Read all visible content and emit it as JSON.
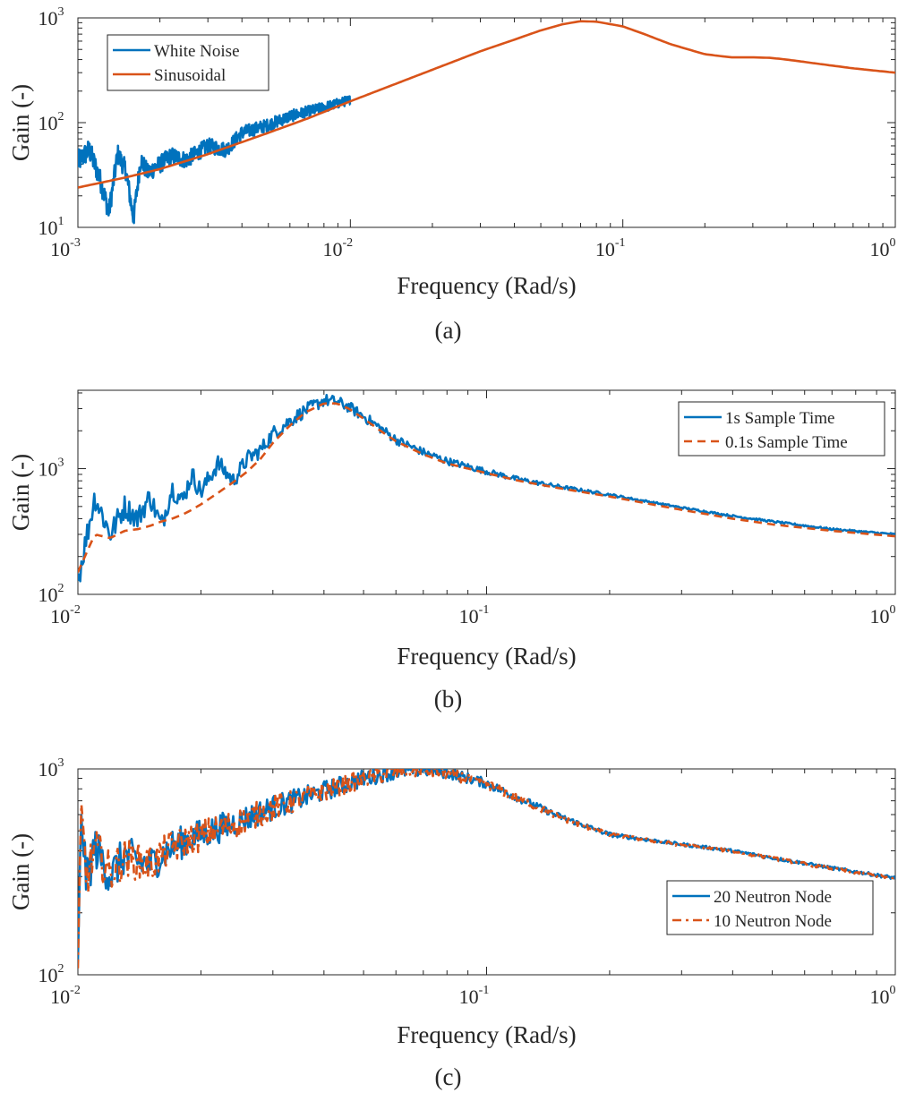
{
  "chart_data": [
    {
      "type": "line",
      "id": "a",
      "caption": "(a)",
      "xlabel": "Frequency (Rad/s)",
      "ylabel": "Gain (-)",
      "xscale": "log",
      "yscale": "log",
      "xlim": [
        0.001,
        1
      ],
      "ylim": [
        10,
        1000
      ],
      "xticks": [
        {
          "base": "10",
          "exp": "-3"
        },
        {
          "base": "10",
          "exp": "-2"
        },
        {
          "base": "10",
          "exp": "-1"
        },
        {
          "base": "10",
          "exp": "0"
        }
      ],
      "yticks": [
        {
          "base": "10",
          "exp": "1"
        },
        {
          "base": "10",
          "exp": "2"
        },
        {
          "base": "10",
          "exp": "3"
        }
      ],
      "legend_position": "top-left",
      "series": [
        {
          "name": "White Noise",
          "color": "#0072bd",
          "style": "solid",
          "noisy": true,
          "x": [
            0.001,
            0.0011,
            0.0012,
            0.0013,
            0.0014,
            0.0015,
            0.0016,
            0.0017,
            0.0018,
            0.002,
            0.0022,
            0.0025,
            0.003,
            0.0035,
            0.004,
            0.005,
            0.006,
            0.008,
            0.01
          ],
          "y": [
            42,
            55,
            30,
            14,
            50,
            35,
            12,
            45,
            33,
            40,
            48,
            44,
            60,
            55,
            80,
            95,
            115,
            140,
            165
          ]
        },
        {
          "name": "Sinusoidal",
          "color": "#d95319",
          "style": "solid",
          "x": [
            0.001,
            0.0015,
            0.002,
            0.003,
            0.005,
            0.007,
            0.01,
            0.015,
            0.02,
            0.03,
            0.04,
            0.05,
            0.06,
            0.07,
            0.08,
            0.1,
            0.12,
            0.15,
            0.2,
            0.25,
            0.3,
            0.35,
            0.4,
            0.5,
            0.7,
            1.0
          ],
          "y": [
            24,
            30,
            36,
            50,
            80,
            110,
            160,
            240,
            320,
            480,
            620,
            760,
            870,
            930,
            920,
            830,
            700,
            560,
            450,
            420,
            420,
            415,
            400,
            370,
            330,
            300
          ]
        }
      ]
    },
    {
      "type": "line",
      "id": "b",
      "caption": "(b)",
      "xlabel": "Frequency (Rad/s)",
      "ylabel": "Gain (-)",
      "xscale": "log",
      "yscale": "log",
      "xlim": [
        0.01,
        1
      ],
      "ylim": [
        100,
        4200
      ],
      "xticks": [
        {
          "base": "10",
          "exp": "-2"
        },
        {
          "base": "10",
          "exp": "-1"
        },
        {
          "base": "10",
          "exp": "0"
        }
      ],
      "yticks": [
        {
          "base": "10",
          "exp": "2"
        },
        {
          "base": "10",
          "exp": "3"
        }
      ],
      "legend_position": "top-right",
      "series": [
        {
          "name": "1s Sample Time",
          "color": "#0072bd",
          "style": "solid",
          "noisy": true,
          "x": [
            0.01,
            0.011,
            0.012,
            0.013,
            0.014,
            0.015,
            0.016,
            0.017,
            0.018,
            0.019,
            0.02,
            0.022,
            0.024,
            0.026,
            0.028,
            0.03,
            0.033,
            0.036,
            0.04,
            0.043,
            0.046,
            0.05,
            0.055,
            0.06,
            0.07,
            0.08,
            0.1,
            0.12,
            0.15,
            0.2,
            0.3,
            0.4,
            0.5,
            0.7,
            1.0
          ],
          "y": [
            130,
            600,
            300,
            500,
            400,
            600,
            350,
            700,
            550,
            900,
            650,
            1100,
            800,
            1200,
            1400,
            1900,
            2400,
            2900,
            3500,
            3400,
            3100,
            2600,
            2100,
            1700,
            1350,
            1150,
            950,
            820,
            720,
            620,
            490,
            420,
            380,
            330,
            300
          ]
        },
        {
          "name": "0.1s Sample Time",
          "color": "#d95319",
          "style": "dashed",
          "x": [
            0.01,
            0.011,
            0.012,
            0.013,
            0.014,
            0.015,
            0.016,
            0.017,
            0.018,
            0.019,
            0.02,
            0.022,
            0.024,
            0.026,
            0.028,
            0.03,
            0.033,
            0.036,
            0.04,
            0.043,
            0.046,
            0.05,
            0.055,
            0.06,
            0.07,
            0.08,
            0.1,
            0.12,
            0.15,
            0.2,
            0.3,
            0.4,
            0.5,
            0.7,
            1.0
          ],
          "y": [
            150,
            300,
            280,
            320,
            330,
            350,
            380,
            400,
            430,
            470,
            520,
            640,
            780,
            950,
            1200,
            1600,
            2200,
            2800,
            3300,
            3300,
            3000,
            2500,
            2000,
            1650,
            1300,
            1100,
            920,
            800,
            700,
            600,
            470,
            400,
            360,
            320,
            290
          ]
        }
      ]
    },
    {
      "type": "line",
      "id": "c",
      "caption": "(c)",
      "xlabel": "Frequency (Rad/s)",
      "ylabel": "Gain (-)",
      "xscale": "log",
      "yscale": "log",
      "xlim": [
        0.01,
        1
      ],
      "ylim": [
        100,
        1000
      ],
      "xticks": [
        {
          "base": "10",
          "exp": "-2"
        },
        {
          "base": "10",
          "exp": "-1"
        },
        {
          "base": "10",
          "exp": "0"
        }
      ],
      "yticks": [
        {
          "base": "10",
          "exp": "2"
        },
        {
          "base": "10",
          "exp": "3"
        }
      ],
      "legend_position": "lower-right",
      "series": [
        {
          "name": "20 Neutron Node",
          "color": "#0072bd",
          "style": "solid",
          "noisy": true,
          "x": [
            0.01,
            0.0102,
            0.0105,
            0.011,
            0.012,
            0.013,
            0.015,
            0.017,
            0.02,
            0.025,
            0.03,
            0.04,
            0.05,
            0.06,
            0.07,
            0.08,
            0.1,
            0.12,
            0.15,
            0.2,
            0.3,
            0.4,
            0.5,
            0.7,
            1.0
          ],
          "y": [
            100,
            620,
            280,
            420,
            300,
            380,
            340,
            420,
            480,
            560,
            650,
            780,
            900,
            970,
            990,
            960,
            850,
            720,
            590,
            480,
            430,
            400,
            370,
            330,
            295
          ]
        },
        {
          "name": "10 Neutron Node",
          "color": "#d95319",
          "style": "dashdot",
          "noisy": true,
          "x": [
            0.01,
            0.0102,
            0.0105,
            0.011,
            0.012,
            0.013,
            0.015,
            0.017,
            0.02,
            0.025,
            0.03,
            0.04,
            0.05,
            0.06,
            0.07,
            0.08,
            0.1,
            0.12,
            0.15,
            0.2,
            0.3,
            0.4,
            0.5,
            0.7,
            1.0
          ],
          "y": [
            105,
            600,
            290,
            410,
            310,
            370,
            345,
            415,
            475,
            555,
            645,
            775,
            895,
            965,
            985,
            955,
            845,
            715,
            585,
            478,
            428,
            398,
            368,
            328,
            293
          ]
        }
      ]
    }
  ]
}
